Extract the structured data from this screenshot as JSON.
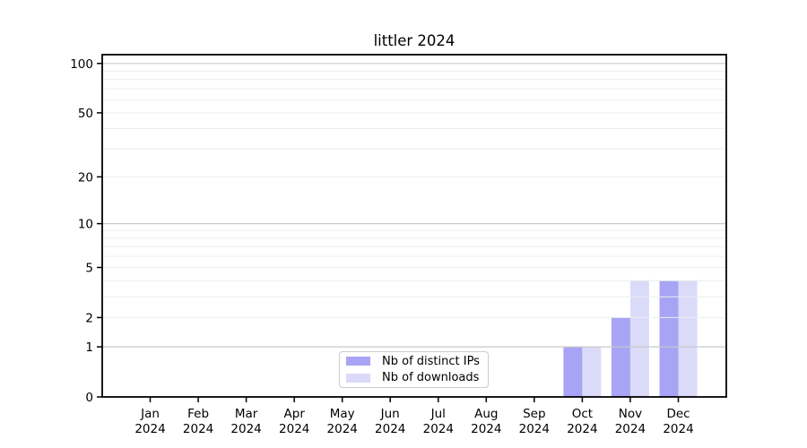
{
  "chart_data": {
    "type": "bar",
    "title": "littler 2024",
    "xlabel": "",
    "ylabel": "",
    "categories": [
      "Jan",
      "Feb",
      "Mar",
      "Apr",
      "May",
      "Jun",
      "Jul",
      "Aug",
      "Sep",
      "Oct",
      "Nov",
      "Dec"
    ],
    "category_year": "2024",
    "series": [
      {
        "name": "Nb of distinct IPs",
        "color": "#a8a4f5",
        "values": [
          0,
          0,
          0,
          0,
          0,
          0,
          0,
          0,
          0,
          1,
          2,
          4
        ]
      },
      {
        "name": "Nb of downloads",
        "color": "#dcdaf9",
        "values": [
          0,
          0,
          0,
          0,
          0,
          0,
          0,
          0,
          0,
          1,
          4,
          4
        ]
      }
    ],
    "yscale": "log1p",
    "ylim": [
      0,
      112
    ],
    "ytick_labels": [
      0,
      1,
      2,
      5,
      10,
      20,
      50,
      100
    ],
    "gridlines": {
      "major": [
        1,
        10,
        100
      ],
      "minor": [
        2,
        3,
        4,
        5,
        6,
        7,
        8,
        9,
        20,
        30,
        40,
        50,
        60,
        70,
        80,
        90
      ]
    },
    "legend_position": "lower center",
    "style": {
      "grid_major_color": "#c9c9c9",
      "grid_minor_color": "#ededed",
      "axis_color": "#000000",
      "text_color": "#000000",
      "background_color": "#ffffff"
    }
  }
}
